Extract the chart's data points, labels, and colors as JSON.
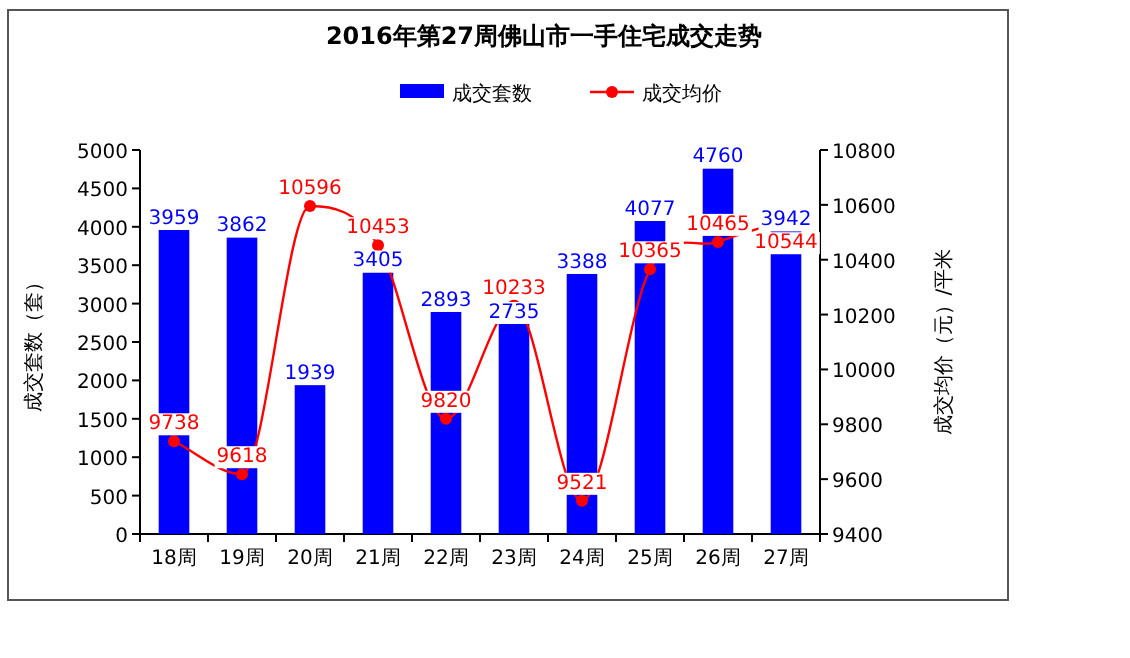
{
  "chart_data": {
    "type": "bar",
    "title": "2016年第27周佛山市一手住宅成交走势",
    "ylabel": "成交套数（套）",
    "y2label": "成交均价（元）/平米",
    "categories": [
      "18周",
      "19周",
      "20周",
      "21周",
      "22周",
      "23周",
      "24周",
      "25周",
      "26周",
      "27周"
    ],
    "series": [
      {
        "name": "成交套数",
        "type": "bar",
        "color": "#0000ff",
        "values": [
          3959,
          3862,
          1939,
          3405,
          2893,
          2735,
          3388,
          4077,
          4760,
          3942
        ]
      },
      {
        "name": "成交均价",
        "type": "line",
        "axis": "y2",
        "color": "#ff0000",
        "marker": "circle",
        "values": [
          9738,
          9618,
          10596,
          10453,
          9820,
          10233,
          9521,
          10365,
          10465,
          10544
        ]
      }
    ],
    "ylim": [
      0,
      5000
    ],
    "yticks": [
      0,
      500,
      1000,
      1500,
      2000,
      2500,
      3000,
      3500,
      4000,
      4500,
      5000
    ],
    "y2lim": [
      9400,
      10800
    ],
    "y2ticks": [
      9400,
      9600,
      9800,
      10000,
      10200,
      10400,
      10600,
      10800
    ],
    "data_labels": true,
    "legend": "top",
    "grid": false
  }
}
